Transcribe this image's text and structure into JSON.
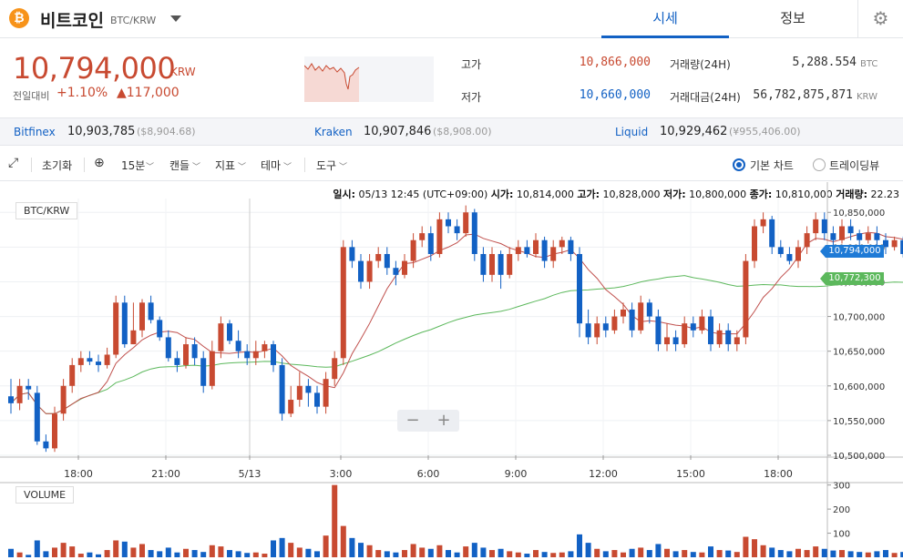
{
  "header": {
    "coin_symbol": "₿",
    "coin_name": "비트코인",
    "pair": "BTC/KRW",
    "tabs": [
      {
        "label": "시세",
        "active": true
      },
      {
        "label": "정보",
        "active": false
      }
    ],
    "settings_icon": "gear-icon"
  },
  "summary": {
    "price": "10,794,000",
    "unit": "KRW",
    "change_label": "전일대비",
    "change_pct": "+1.10%",
    "change_amount": "▲117,000",
    "high_label": "고가",
    "high_value": "10,866,000",
    "low_label": "저가",
    "low_value": "10,660,000",
    "volume_label": "거래량(24H)",
    "volume_value": "5,288.554",
    "volume_unit": "BTC",
    "amount_label": "거래대금(24H)",
    "amount_value": "56,782,875,871",
    "amount_unit": "KRW",
    "colors": {
      "up": "#c84a31",
      "down": "#1261c4"
    }
  },
  "exchanges": [
    {
      "name": "Bitfinex",
      "value": "10,903,785",
      "sub": "($8,904.68)"
    },
    {
      "name": "Kraken",
      "value": "10,907,846",
      "sub": "($8,908.00)"
    },
    {
      "name": "Liquid",
      "value": "10,929,462",
      "sub": "(¥955,406.00)"
    }
  ],
  "toolbar": {
    "expand_icon": "expand-icon",
    "reset": "초기화",
    "globe_icon": "globe-icon",
    "interval": "15분",
    "candle": "캔들",
    "indicator": "지표",
    "theme": "테마",
    "tools": "도구",
    "basic_chart": "기본 차트",
    "tradingview": "트레이딩뷰"
  },
  "ohlc": {
    "time_label": "일시:",
    "time_value": "05/13 12:45 (UTC+09:00)",
    "open_label": "시가:",
    "open_value": "10,814,000",
    "high_label": "고가:",
    "high_value": "10,828,000",
    "low_label": "저가:",
    "low_value": "10,800,000",
    "close_label": "종가:",
    "close_value": "10,810,000",
    "volume_label": "거래량:",
    "volume_value": "22.23"
  },
  "chart_labels": {
    "series": "BTC/KRW",
    "volume": "VOLUME",
    "zoom_out": "−",
    "zoom_in": "+",
    "last_price_tag": "10,794,000",
    "ma_tag": "10,772,300"
  },
  "chart_data": {
    "type": "candlestick",
    "price_axis_ticks": [
      "10,850,000",
      "10,800,000",
      "10,750,000",
      "10,700,000",
      "10,650,000",
      "10,600,000",
      "10,550,000",
      "10,500,000"
    ],
    "price_range": [
      10500000,
      10870000
    ],
    "time_axis_ticks": [
      "18:00",
      "21:00",
      "5/13",
      "3:00",
      "6:00",
      "9:00",
      "12:00",
      "15:00",
      "18:00"
    ],
    "volume_axis_ticks": [
      "300",
      "200",
      "100"
    ],
    "volume_range": [
      0,
      310
    ],
    "candles": [
      [
        10585000,
        10575000,
        10610000,
        10560000,
        35
      ],
      [
        10575000,
        10600000,
        10610000,
        10565000,
        20
      ],
      [
        10600000,
        10595000,
        10610000,
        10580000,
        10
      ],
      [
        10590000,
        10520000,
        10600000,
        10515000,
        70
      ],
      [
        10520000,
        10510000,
        10530000,
        10505000,
        25
      ],
      [
        10510000,
        10560000,
        10570000,
        10505000,
        40
      ],
      [
        10560000,
        10600000,
        10610000,
        10550000,
        60
      ],
      [
        10600000,
        10630000,
        10640000,
        10590000,
        45
      ],
      [
        10630000,
        10640000,
        10650000,
        10620000,
        15
      ],
      [
        10640000,
        10635000,
        10650000,
        10630000,
        20
      ],
      [
        10635000,
        10630000,
        10645000,
        10620000,
        12
      ],
      [
        10630000,
        10645000,
        10655000,
        10625000,
        30
      ],
      [
        10645000,
        10720000,
        10730000,
        10640000,
        70
      ],
      [
        10720000,
        10660000,
        10730000,
        10655000,
        65
      ],
      [
        10660000,
        10680000,
        10720000,
        10660000,
        40
      ],
      [
        10680000,
        10720000,
        10725000,
        10670000,
        55
      ],
      [
        10720000,
        10695000,
        10730000,
        10690000,
        30
      ],
      [
        10695000,
        10670000,
        10700000,
        10665000,
        25
      ],
      [
        10670000,
        10640000,
        10680000,
        10635000,
        40
      ],
      [
        10640000,
        10630000,
        10650000,
        10620000,
        20
      ],
      [
        10630000,
        10660000,
        10670000,
        10625000,
        35
      ],
      [
        10660000,
        10640000,
        10670000,
        10630000,
        30
      ],
      [
        10640000,
        10600000,
        10650000,
        10590000,
        22
      ],
      [
        10600000,
        10650000,
        10665000,
        10595000,
        50
      ],
      [
        10650000,
        10690000,
        10700000,
        10640000,
        45
      ],
      [
        10690000,
        10665000,
        10695000,
        10660000,
        30
      ],
      [
        10665000,
        10650000,
        10680000,
        10640000,
        25
      ],
      [
        10650000,
        10640000,
        10660000,
        10630000,
        18
      ],
      [
        10640000,
        10650000,
        10665000,
        10630000,
        20
      ],
      [
        10650000,
        10660000,
        10665000,
        10640000,
        15
      ],
      [
        10660000,
        10630000,
        10665000,
        10620000,
        70
      ],
      [
        10630000,
        10560000,
        10640000,
        10550000,
        80
      ],
      [
        10560000,
        10580000,
        10600000,
        10555000,
        60
      ],
      [
        10580000,
        10600000,
        10620000,
        10570000,
        40
      ],
      [
        10600000,
        10590000,
        10610000,
        10570000,
        35
      ],
      [
        10590000,
        10570000,
        10600000,
        10560000,
        25
      ],
      [
        10570000,
        10610000,
        10620000,
        10560000,
        90
      ],
      [
        10610000,
        10640000,
        10650000,
        10600000,
        300
      ],
      [
        10640000,
        10800000,
        10810000,
        10630000,
        130
      ],
      [
        10800000,
        10780000,
        10810000,
        10770000,
        80
      ],
      [
        10780000,
        10750000,
        10790000,
        10740000,
        60
      ],
      [
        10750000,
        10780000,
        10790000,
        10740000,
        50
      ],
      [
        10780000,
        10790000,
        10800000,
        10770000,
        30
      ],
      [
        10790000,
        10770000,
        10800000,
        10760000,
        25
      ],
      [
        10770000,
        10760000,
        10780000,
        10745000,
        20
      ],
      [
        10760000,
        10780000,
        10790000,
        10755000,
        30
      ],
      [
        10780000,
        10810000,
        10820000,
        10770000,
        55
      ],
      [
        10810000,
        10820000,
        10830000,
        10800000,
        40
      ],
      [
        10820000,
        10790000,
        10830000,
        10780000,
        35
      ],
      [
        10790000,
        10840000,
        10850000,
        10785000,
        50
      ],
      [
        10840000,
        10830000,
        10850000,
        10820000,
        30
      ],
      [
        10830000,
        10820000,
        10840000,
        10810000,
        20
      ],
      [
        10820000,
        10850000,
        10860000,
        10815000,
        45
      ],
      [
        10850000,
        10790000,
        10855000,
        10780000,
        60
      ],
      [
        10790000,
        10760000,
        10800000,
        10750000,
        40
      ],
      [
        10760000,
        10790000,
        10800000,
        10750000,
        30
      ],
      [
        10790000,
        10760000,
        10795000,
        10740000,
        35
      ],
      [
        10760000,
        10790000,
        10800000,
        10755000,
        25
      ],
      [
        10790000,
        10800000,
        10810000,
        10780000,
        20
      ],
      [
        10800000,
        10790000,
        10810000,
        10785000,
        15
      ],
      [
        10790000,
        10810000,
        10820000,
        10785000,
        30
      ],
      [
        10810000,
        10780000,
        10815000,
        10770000,
        22
      ],
      [
        10780000,
        10800000,
        10810000,
        10770000,
        18
      ],
      [
        10800000,
        10810000,
        10815000,
        10790000,
        20
      ],
      [
        10810000,
        10790000,
        10815000,
        10780000,
        25
      ],
      [
        10790000,
        10690000,
        10800000,
        10670000,
        95
      ],
      [
        10690000,
        10670000,
        10710000,
        10660000,
        60
      ],
      [
        10670000,
        10690000,
        10700000,
        10660000,
        35
      ],
      [
        10690000,
        10680000,
        10700000,
        10670000,
        25
      ],
      [
        10680000,
        10700000,
        10710000,
        10675000,
        30
      ],
      [
        10700000,
        10710000,
        10720000,
        10690000,
        20
      ],
      [
        10710000,
        10680000,
        10720000,
        10670000,
        35
      ],
      [
        10680000,
        10720000,
        10730000,
        10675000,
        40
      ],
      [
        10720000,
        10700000,
        10725000,
        10690000,
        30
      ],
      [
        10700000,
        10660000,
        10710000,
        10650000,
        55
      ],
      [
        10660000,
        10670000,
        10690000,
        10650000,
        35
      ],
      [
        10670000,
        10660000,
        10680000,
        10650000,
        25
      ],
      [
        10660000,
        10690000,
        10700000,
        10655000,
        30
      ],
      [
        10690000,
        10680000,
        10700000,
        10670000,
        22
      ],
      [
        10680000,
        10700000,
        10710000,
        10675000,
        20
      ],
      [
        10700000,
        10660000,
        10710000,
        10650000,
        45
      ],
      [
        10660000,
        10680000,
        10690000,
        10655000,
        30
      ],
      [
        10680000,
        10660000,
        10690000,
        10650000,
        28
      ],
      [
        10660000,
        10670000,
        10680000,
        10650000,
        22
      ],
      [
        10670000,
        10780000,
        10790000,
        10660000,
        85
      ],
      [
        10780000,
        10830000,
        10840000,
        10770000,
        75
      ],
      [
        10830000,
        10840000,
        10850000,
        10820000,
        50
      ],
      [
        10840000,
        10800000,
        10845000,
        10790000,
        40
      ],
      [
        10800000,
        10790000,
        10810000,
        10785000,
        30
      ],
      [
        10790000,
        10780000,
        10800000,
        10775000,
        25
      ],
      [
        10780000,
        10800000,
        10810000,
        10770000,
        35
      ],
      [
        10800000,
        10820000,
        10830000,
        10790000,
        30
      ],
      [
        10820000,
        10840000,
        10850000,
        10810000,
        45
      ],
      [
        10840000,
        10820000,
        10850000,
        10810000,
        35
      ],
      [
        10820000,
        10810000,
        10830000,
        10800000,
        28
      ],
      [
        10810000,
        10830000,
        10840000,
        10805000,
        30
      ],
      [
        10830000,
        10820000,
        10840000,
        10810000,
        25
      ],
      [
        10820000,
        10810000,
        10825000,
        10800000,
        22
      ],
      [
        10810000,
        10820000,
        10830000,
        10805000,
        20
      ],
      [
        10820000,
        10810000,
        10830000,
        10800000,
        25
      ],
      [
        10810000,
        10800000,
        10820000,
        10790000,
        30
      ],
      [
        10800000,
        10810000,
        10815000,
        10795000,
        18
      ],
      [
        10810000,
        10790000,
        10815000,
        10785000,
        22
      ],
      [
        10790000,
        10800000,
        10810000,
        10785000,
        20
      ],
      [
        10800000,
        10790000,
        10805000,
        10785000,
        15
      ],
      [
        10790000,
        10800000,
        10810000,
        10785000,
        18
      ],
      [
        10800000,
        10790000,
        10805000,
        10780000,
        20
      ],
      [
        10790000,
        10780000,
        10800000,
        10770000,
        25
      ],
      [
        10780000,
        10790000,
        10800000,
        10775000,
        20
      ],
      [
        10790000,
        10730000,
        10795000,
        10720000,
        90
      ],
      [
        10730000,
        10780000,
        10790000,
        10720000,
        65
      ],
      [
        10780000,
        10800000,
        10810000,
        10770000,
        30
      ],
      [
        10800000,
        10794000,
        10810000,
        10790000,
        22
      ]
    ],
    "ma_short_color": "#c0504d",
    "ma_long_color": "#5cb85c",
    "up_color": "#c84a31",
    "down_color": "#1261c4"
  }
}
